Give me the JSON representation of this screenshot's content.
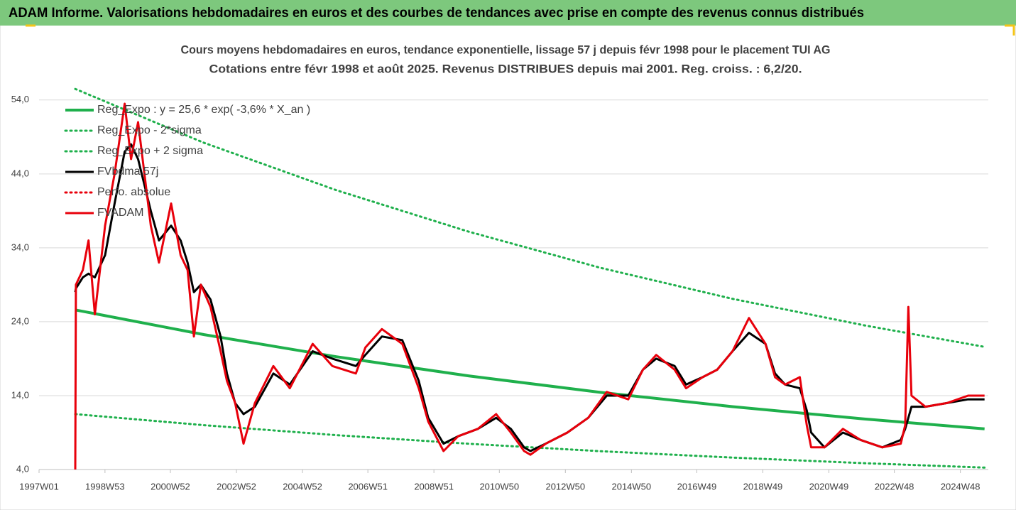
{
  "header": {
    "title": "ADAM Informe. Valorisations hebdomadaires en euros et des courbes de tendances avec prise en compte des revenus connus distribués"
  },
  "chart_data": {
    "type": "line",
    "title": "Cours moyens hebdomadaires en euros, tendance exponentielle, lissage 57 j depuis févr 1998 pour le placement TUI AG",
    "subtitle": "Cotations entre févr 1998 et août 2025. Revenus DISTRIBUES depuis mai 2001.  Reg. croiss. : 6,2/20.",
    "x": [
      "1998W06",
      "1998W07",
      "1998W18",
      "1998W27",
      "1998W37",
      "1999W01",
      "1999W16",
      "1999W32",
      "1999W42",
      "2000W01",
      "2000W21",
      "2000W34",
      "2001W01",
      "2001W16",
      "2001W27",
      "2001W37",
      "2001W48",
      "2002W11",
      "2002W27",
      "2002W37",
      "2002W50",
      "2003W11",
      "2003W29",
      "2004W06",
      "2004W32",
      "2005W16",
      "2005W47",
      "2006W32",
      "2006W47",
      "2007W21",
      "2008W01",
      "2008W27",
      "2008W42",
      "2009W14",
      "2009W37",
      "2010W16",
      "2010W45",
      "2011W16",
      "2011W37",
      "2011W47",
      "2012W19",
      "2013W01",
      "2013W34",
      "2014W11",
      "2014W45",
      "2015W16",
      "2015W37",
      "2016W14",
      "2016W32",
      "2017W06",
      "2017W29",
      "2018W01",
      "2018W27",
      "2019W01",
      "2019W16",
      "2019W32",
      "2020W03",
      "2020W14",
      "2020W21",
      "2020W42",
      "2021W19",
      "2021W47",
      "2022W29",
      "2023W06",
      "2023W13",
      "2023W18",
      "2023W23",
      "2023W45",
      "2024W27",
      "2025W08",
      "2025W34"
    ],
    "xlim": [
      "1997W01",
      "2025W40"
    ],
    "xticks": [
      "1997W01",
      "1998W53",
      "2000W52",
      "2002W52",
      "2004W52",
      "2006W51",
      "2008W51",
      "2010W50",
      "2012W50",
      "2014W50",
      "2016W49",
      "2018W49",
      "2020W49",
      "2022W48",
      "2024W48"
    ],
    "ylim": [
      4,
      56
    ],
    "yticks": [
      {
        "value": 4,
        "label": "4,0"
      },
      {
        "value": 14,
        "label": "14,0"
      },
      {
        "value": 24,
        "label": "24,0"
      },
      {
        "value": 34,
        "label": "34,0"
      },
      {
        "value": 44,
        "label": "44,0"
      },
      {
        "value": 54,
        "label": "54,0"
      }
    ],
    "grid": true,
    "legend": "top-left",
    "series": [
      {
        "name": "Reg_Expo : y = 25,6 * exp( -3,6% *  X_an )",
        "color": "#1fb04c",
        "width": 4,
        "dash": false,
        "x": [
          "1998W06",
          "2002W01",
          "2006W01",
          "2010W01",
          "2014W01",
          "2018W01",
          "2022W01",
          "2025W34"
        ],
        "values": [
          25.6,
          22.25,
          19.26,
          16.68,
          14.44,
          12.51,
          10.83,
          9.5
        ]
      },
      {
        "name": "Reg_Expo - 2*sigma",
        "color": "#1fb04c",
        "width": 3,
        "dash": true,
        "x": [
          "1998W06",
          "2002W01",
          "2006W01",
          "2010W01",
          "2014W01",
          "2018W01",
          "2022W01",
          "2025W34"
        ],
        "values": [
          11.5,
          10.0,
          8.65,
          7.49,
          6.48,
          5.61,
          4.86,
          4.26
        ]
      },
      {
        "name": "Reg_Expo + 2 sigma",
        "color": "#1fb04c",
        "width": 3,
        "dash": true,
        "x": [
          "1998W06",
          "2002W01",
          "2006W01",
          "2010W01",
          "2014W01",
          "2018W01",
          "2022W01",
          "2025W34"
        ],
        "values": [
          55.5,
          48.2,
          41.8,
          36.2,
          31.3,
          27.1,
          23.5,
          20.6
        ]
      },
      {
        "name": "FVbdma 57j",
        "color": "#000000",
        "width": 3,
        "dash": false,
        "values": [
          28,
          28.5,
          30,
          30.5,
          30,
          33,
          40,
          47,
          48,
          46,
          39,
          35,
          37,
          35,
          32,
          28,
          29,
          27,
          22,
          17,
          13,
          11.5,
          12.5,
          17,
          15.5,
          20,
          19,
          18,
          19.5,
          22,
          21.5,
          16,
          11,
          7.5,
          8.5,
          9.5,
          11,
          9.5,
          7,
          6.5,
          7.5,
          9,
          11,
          14,
          14,
          17.5,
          19,
          18,
          15.5,
          16.5,
          17.5,
          20,
          22.5,
          21,
          17,
          15.5,
          15,
          12,
          9,
          7,
          9,
          8,
          7,
          8,
          9.5,
          11,
          12.5,
          12.5,
          13,
          13.5,
          13.5
        ]
      },
      {
        "name": "Perfo. absolue",
        "color": "#e8000b",
        "width": 3,
        "dash": true,
        "x": [],
        "values": []
      },
      {
        "name": "FVADAM",
        "color": "#e8000b",
        "width": 3,
        "dash": false,
        "values": [
          4,
          29,
          31,
          35,
          25,
          37,
          44,
          53.5,
          46,
          51,
          37,
          32,
          40,
          33,
          31,
          22,
          29,
          26,
          20,
          16,
          13,
          7.5,
          13,
          18,
          15,
          21,
          18,
          17,
          20.5,
          23,
          21,
          15,
          10.5,
          6.5,
          8.5,
          9.5,
          11.5,
          9,
          6.5,
          6,
          7.5,
          9,
          11,
          14.5,
          13.5,
          17.5,
          19.5,
          17.5,
          15,
          16.5,
          17.5,
          20,
          24.5,
          21,
          16.5,
          15.5,
          16.5,
          10,
          7,
          7,
          9.5,
          8,
          7,
          7.5,
          10,
          26,
          14,
          12.5,
          13,
          14,
          14
        ]
      }
    ]
  }
}
